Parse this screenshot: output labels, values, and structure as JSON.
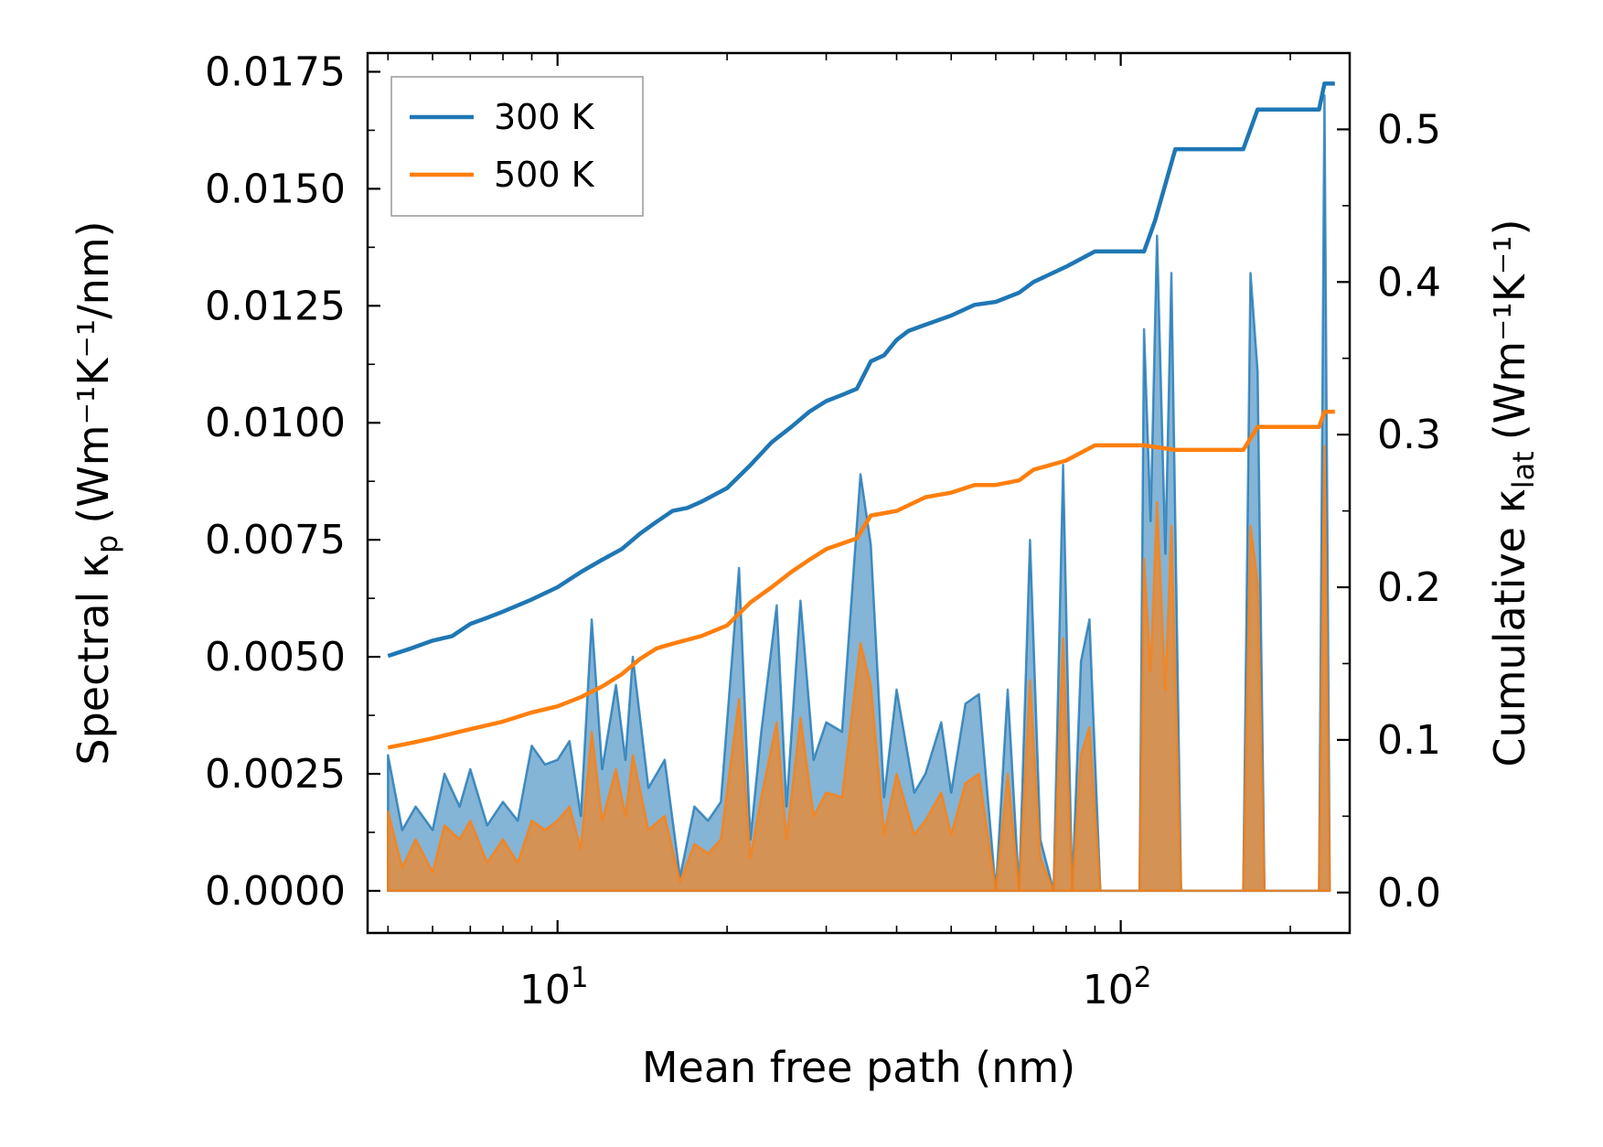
{
  "chart_data": {
    "type": "line",
    "xscale": "log",
    "xlim": [
      4.6,
      255
    ],
    "ylim": [
      -0.0009,
      0.0179
    ],
    "ylim_right": [
      -0.0265,
      0.55
    ],
    "xlabel": "Mean free path (nm)",
    "ylabel": "Spectral κ",
    "ylabel_sub": "p",
    "ylabel_units": "(Wm⁻¹K⁻¹/nm)",
    "ylabel_right": "Cumulative κ",
    "ylabel_right_sub": "lat",
    "ylabel_right_units": "(Wm⁻¹K⁻¹)",
    "xticks": [
      {
        "value": 10,
        "base": "10",
        "exp": "1"
      },
      {
        "value": 100,
        "base": "10",
        "exp": "2"
      }
    ],
    "yticks_left": [
      {
        "value": 0,
        "label": "0.0000"
      },
      {
        "value": 0.0025,
        "label": "0.0025"
      },
      {
        "value": 0.005,
        "label": "0.0050"
      },
      {
        "value": 0.0075,
        "label": "0.0075"
      },
      {
        "value": 0.01,
        "label": "0.0100"
      },
      {
        "value": 0.0125,
        "label": "0.0125"
      },
      {
        "value": 0.015,
        "label": "0.0150"
      },
      {
        "value": 0.0175,
        "label": "0.0175"
      }
    ],
    "yticks_right": [
      {
        "value": 0,
        "label": "0.0"
      },
      {
        "value": 0.1,
        "label": "0.1"
      },
      {
        "value": 0.2,
        "label": "0.2"
      },
      {
        "value": 0.3,
        "label": "0.3"
      },
      {
        "value": 0.4,
        "label": "0.4"
      },
      {
        "value": 0.5,
        "label": "0.5"
      }
    ],
    "legend_position": "top-left",
    "series": [
      {
        "name": "300 K",
        "color": "#1f77b4",
        "cumulative": [
          [
            5.0,
            0.155
          ],
          [
            5.5,
            0.16
          ],
          [
            6.0,
            0.165
          ],
          [
            6.5,
            0.168
          ],
          [
            7.0,
            0.176
          ],
          [
            7.5,
            0.18
          ],
          [
            8.0,
            0.184
          ],
          [
            9.0,
            0.192
          ],
          [
            10.0,
            0.2
          ],
          [
            11.0,
            0.21
          ],
          [
            12.0,
            0.218
          ],
          [
            13.0,
            0.225
          ],
          [
            14.0,
            0.235
          ],
          [
            15.0,
            0.243
          ],
          [
            16.0,
            0.25
          ],
          [
            17.0,
            0.252
          ],
          [
            18.0,
            0.256
          ],
          [
            20.0,
            0.265
          ],
          [
            22.0,
            0.28
          ],
          [
            24.0,
            0.295
          ],
          [
            26.0,
            0.305
          ],
          [
            28.0,
            0.315
          ],
          [
            30.0,
            0.322
          ],
          [
            32.0,
            0.326
          ],
          [
            34.0,
            0.33
          ],
          [
            36.0,
            0.348
          ],
          [
            38.0,
            0.352
          ],
          [
            40.0,
            0.362
          ],
          [
            42.0,
            0.368
          ],
          [
            45.0,
            0.372
          ],
          [
            50.0,
            0.378
          ],
          [
            55.0,
            0.385
          ],
          [
            60.0,
            0.387
          ],
          [
            66.0,
            0.393
          ],
          [
            70.0,
            0.4
          ],
          [
            80.0,
            0.41
          ],
          [
            90.0,
            0.42
          ],
          [
            110.0,
            0.42
          ],
          [
            115.0,
            0.44
          ],
          [
            125.0,
            0.487
          ],
          [
            165.0,
            0.487
          ],
          [
            175.0,
            0.513
          ],
          [
            225.0,
            0.513
          ],
          [
            230.0,
            0.53
          ],
          [
            240.0,
            0.53
          ]
        ],
        "spectral": [
          [
            5.0,
            0.0029
          ],
          [
            5.3,
            0.0013
          ],
          [
            5.6,
            0.0018
          ],
          [
            6.0,
            0.0013
          ],
          [
            6.3,
            0.0025
          ],
          [
            6.7,
            0.0018
          ],
          [
            7.0,
            0.0026
          ],
          [
            7.5,
            0.0014
          ],
          [
            8.0,
            0.0019
          ],
          [
            8.5,
            0.0015
          ],
          [
            9.0,
            0.0031
          ],
          [
            9.5,
            0.0027
          ],
          [
            10.0,
            0.0028
          ],
          [
            10.5,
            0.0032
          ],
          [
            11.0,
            0.0016
          ],
          [
            11.5,
            0.0058
          ],
          [
            12.0,
            0.0026
          ],
          [
            12.7,
            0.0044
          ],
          [
            13.2,
            0.0028
          ],
          [
            13.6,
            0.005
          ],
          [
            14.5,
            0.0022
          ],
          [
            15.5,
            0.0028
          ],
          [
            16.5,
            0.0003
          ],
          [
            17.5,
            0.0018
          ],
          [
            18.5,
            0.0015
          ],
          [
            19.5,
            0.0019
          ],
          [
            21.0,
            0.0069
          ],
          [
            22.0,
            0.0011
          ],
          [
            23.0,
            0.0034
          ],
          [
            24.5,
            0.0061
          ],
          [
            25.5,
            0.0018
          ],
          [
            27.0,
            0.0062
          ],
          [
            28.5,
            0.0028
          ],
          [
            30.0,
            0.0036
          ],
          [
            32.0,
            0.0034
          ],
          [
            34.5,
            0.0089
          ],
          [
            36.0,
            0.0074
          ],
          [
            38.0,
            0.002
          ],
          [
            40.0,
            0.0043
          ],
          [
            43.0,
            0.0021
          ],
          [
            45.0,
            0.0025
          ],
          [
            48.0,
            0.0036
          ],
          [
            50.0,
            0.0021
          ],
          [
            53.0,
            0.004
          ],
          [
            56.0,
            0.0042
          ],
          [
            60.0,
            0.0
          ],
          [
            63.0,
            0.0043
          ],
          [
            66.0,
            0.0
          ],
          [
            69.0,
            0.0075
          ],
          [
            72.0,
            0.0011
          ],
          [
            76.0,
            0.0
          ],
          [
            79.0,
            0.0091
          ],
          [
            82.0,
            0.0
          ],
          [
            85.0,
            0.0049
          ],
          [
            88.0,
            0.0058
          ],
          [
            92.0,
            0.0
          ],
          [
            108.0,
            0.0
          ],
          [
            110.0,
            0.012
          ],
          [
            113.0,
            0.0079
          ],
          [
            116.0,
            0.014
          ],
          [
            120.0,
            0.0072
          ],
          [
            123.0,
            0.0132
          ],
          [
            128.0,
            0.0
          ],
          [
            165.0,
            0.0
          ],
          [
            170.0,
            0.0132
          ],
          [
            175.0,
            0.0111
          ],
          [
            180.0,
            0.0
          ],
          [
            225.0,
            0.0
          ],
          [
            230.0,
            0.017
          ],
          [
            235.0,
            0.0
          ]
        ]
      },
      {
        "name": "500 K",
        "color": "#ff7f0e",
        "cumulative": [
          [
            5.0,
            0.095
          ],
          [
            5.5,
            0.098
          ],
          [
            6.0,
            0.101
          ],
          [
            7.0,
            0.107
          ],
          [
            8.0,
            0.112
          ],
          [
            9.0,
            0.118
          ],
          [
            10.0,
            0.122
          ],
          [
            11.0,
            0.128
          ],
          [
            12.0,
            0.135
          ],
          [
            13.0,
            0.143
          ],
          [
            14.0,
            0.153
          ],
          [
            15.0,
            0.16
          ],
          [
            16.0,
            0.163
          ],
          [
            18.0,
            0.168
          ],
          [
            20.0,
            0.175
          ],
          [
            22.0,
            0.19
          ],
          [
            24.0,
            0.2
          ],
          [
            26.0,
            0.21
          ],
          [
            28.0,
            0.218
          ],
          [
            30.0,
            0.225
          ],
          [
            34.0,
            0.232
          ],
          [
            36.0,
            0.247
          ],
          [
            40.0,
            0.25
          ],
          [
            45.0,
            0.259
          ],
          [
            50.0,
            0.262
          ],
          [
            55.0,
            0.267
          ],
          [
            60.0,
            0.267
          ],
          [
            66.0,
            0.27
          ],
          [
            70.0,
            0.277
          ],
          [
            80.0,
            0.283
          ],
          [
            90.0,
            0.293
          ],
          [
            110.0,
            0.293
          ],
          [
            125.0,
            0.29
          ],
          [
            125.01,
            0.29
          ],
          [
            165.0,
            0.29
          ],
          [
            175.0,
            0.305
          ],
          [
            225.0,
            0.305
          ],
          [
            230.0,
            0.315
          ],
          [
            240.0,
            0.315
          ]
        ],
        "spectral": [
          [
            5.0,
            0.0017
          ],
          [
            5.3,
            0.0005
          ],
          [
            5.6,
            0.0011
          ],
          [
            6.0,
            0.0004
          ],
          [
            6.3,
            0.0014
          ],
          [
            6.7,
            0.0011
          ],
          [
            7.0,
            0.0015
          ],
          [
            7.5,
            0.0006
          ],
          [
            8.0,
            0.0011
          ],
          [
            8.5,
            0.0006
          ],
          [
            9.0,
            0.0015
          ],
          [
            9.5,
            0.0013
          ],
          [
            10.0,
            0.0015
          ],
          [
            10.5,
            0.0018
          ],
          [
            11.0,
            0.0009
          ],
          [
            11.5,
            0.0034
          ],
          [
            12.0,
            0.0015
          ],
          [
            12.7,
            0.0026
          ],
          [
            13.2,
            0.0016
          ],
          [
            13.6,
            0.0029
          ],
          [
            14.5,
            0.0013
          ],
          [
            15.5,
            0.0016
          ],
          [
            16.5,
            0.0002
          ],
          [
            17.5,
            0.001
          ],
          [
            18.5,
            0.0008
          ],
          [
            19.5,
            0.0011
          ],
          [
            21.0,
            0.0041
          ],
          [
            22.0,
            0.0007
          ],
          [
            23.0,
            0.002
          ],
          [
            24.5,
            0.0036
          ],
          [
            25.5,
            0.0011
          ],
          [
            27.0,
            0.0037
          ],
          [
            28.5,
            0.0016
          ],
          [
            30.0,
            0.0021
          ],
          [
            32.0,
            0.002
          ],
          [
            34.5,
            0.0053
          ],
          [
            36.0,
            0.0044
          ],
          [
            38.0,
            0.0012
          ],
          [
            40.0,
            0.0025
          ],
          [
            43.0,
            0.0012
          ],
          [
            45.0,
            0.0015
          ],
          [
            48.0,
            0.0021
          ],
          [
            50.0,
            0.0012
          ],
          [
            53.0,
            0.0023
          ],
          [
            56.0,
            0.0025
          ],
          [
            60.0,
            0.0
          ],
          [
            63.0,
            0.0025
          ],
          [
            66.0,
            0.0
          ],
          [
            69.0,
            0.0045
          ],
          [
            72.0,
            0.0007
          ],
          [
            76.0,
            0.0
          ],
          [
            79.0,
            0.0054
          ],
          [
            82.0,
            0.0
          ],
          [
            85.0,
            0.0029
          ],
          [
            88.0,
            0.0035
          ],
          [
            92.0,
            0.0
          ],
          [
            108.0,
            0.0
          ],
          [
            110.0,
            0.0071
          ],
          [
            113.0,
            0.0047
          ],
          [
            116.0,
            0.0083
          ],
          [
            120.0,
            0.0043
          ],
          [
            123.0,
            0.0078
          ],
          [
            128.0,
            0.0
          ],
          [
            165.0,
            0.0
          ],
          [
            170.0,
            0.0078
          ],
          [
            175.0,
            0.0066
          ],
          [
            180.0,
            0.0
          ],
          [
            225.0,
            0.0
          ],
          [
            230.0,
            0.0095
          ],
          [
            235.0,
            0.0
          ]
        ]
      }
    ]
  }
}
